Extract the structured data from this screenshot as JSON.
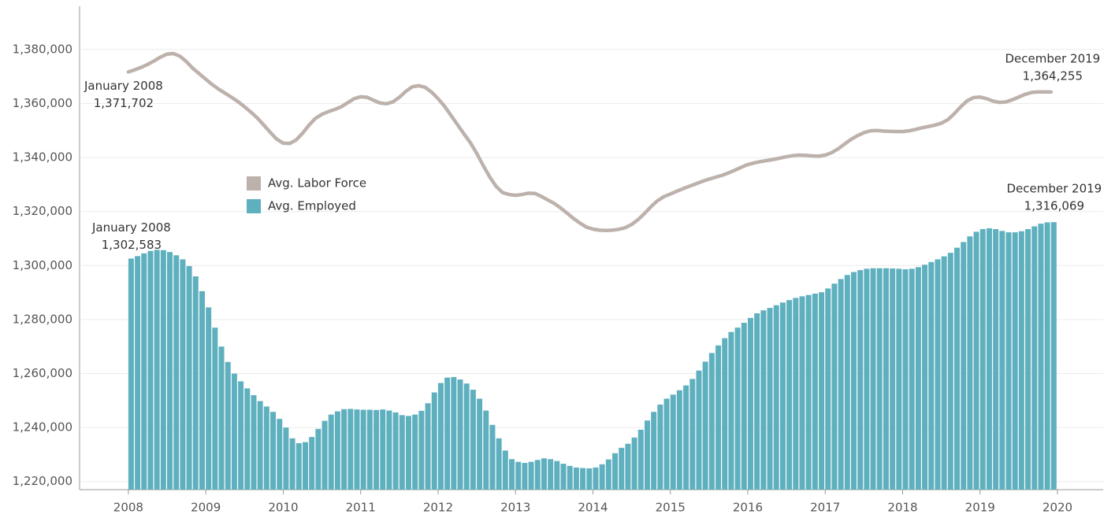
{
  "chart_data": {
    "type": "combo",
    "x": [
      2008,
      2008.0833,
      2008.1667,
      2008.25,
      2008.3333,
      2008.4167,
      2008.5,
      2008.5833,
      2008.6667,
      2008.75,
      2008.8333,
      2008.9167,
      2009,
      2009.0833,
      2009.1667,
      2009.25,
      2009.3333,
      2009.4167,
      2009.5,
      2009.5833,
      2009.6667,
      2009.75,
      2009.8333,
      2009.9167,
      2010,
      2010.0833,
      2010.1667,
      2010.25,
      2010.3333,
      2010.4167,
      2010.5,
      2010.5833,
      2010.6667,
      2010.75,
      2010.8333,
      2010.9167,
      2011,
      2011.0833,
      2011.1667,
      2011.25,
      2011.3333,
      2011.4167,
      2011.5,
      2011.5833,
      2011.6667,
      2011.75,
      2011.8333,
      2011.9167,
      2012,
      2012.0833,
      2012.1667,
      2012.25,
      2012.3333,
      2012.4167,
      2012.5,
      2012.5833,
      2012.6667,
      2012.75,
      2012.8333,
      2012.9167,
      2013,
      2013.0833,
      2013.1667,
      2013.25,
      2013.3333,
      2013.4167,
      2013.5,
      2013.5833,
      2013.6667,
      2013.75,
      2013.8333,
      2013.9167,
      2014,
      2014.0833,
      2014.1667,
      2014.25,
      2014.3333,
      2014.4167,
      2014.5,
      2014.5833,
      2014.6667,
      2014.75,
      2014.8333,
      2014.9167,
      2015,
      2015.0833,
      2015.1667,
      2015.25,
      2015.3333,
      2015.4167,
      2015.5,
      2015.5833,
      2015.6667,
      2015.75,
      2015.8333,
      2015.9167,
      2016,
      2016.0833,
      2016.1667,
      2016.25,
      2016.3333,
      2016.4167,
      2016.5,
      2016.5833,
      2016.6667,
      2016.75,
      2016.8333,
      2016.9167,
      2017,
      2017.0833,
      2017.1667,
      2017.25,
      2017.3333,
      2017.4167,
      2017.5,
      2017.5833,
      2017.6667,
      2017.75,
      2017.8333,
      2017.9167,
      2018,
      2018.0833,
      2018.1667,
      2018.25,
      2018.3333,
      2018.4167,
      2018.5,
      2018.5833,
      2018.6667,
      2018.75,
      2018.8333,
      2018.9167,
      2019,
      2019.0833,
      2019.1667,
      2019.25,
      2019.3333,
      2019.4167,
      2019.5,
      2019.5833,
      2019.6667,
      2019.75,
      2019.8333,
      2019.9167
    ],
    "series": [
      {
        "name": "Avg. Labor Force",
        "type": "line",
        "color": "#bdb1ac",
        "values": [
          1371702,
          1372500,
          1373400,
          1374500,
          1375800,
          1377200,
          1378300,
          1378500,
          1377500,
          1375500,
          1373000,
          1371000,
          1369000,
          1367000,
          1365300,
          1363800,
          1362300,
          1360700,
          1358800,
          1356800,
          1354600,
          1352000,
          1349300,
          1346800,
          1345300,
          1345200,
          1346500,
          1349000,
          1352000,
          1354500,
          1356000,
          1357000,
          1357800,
          1358800,
          1360300,
          1361800,
          1362500,
          1362300,
          1361200,
          1360200,
          1359900,
          1360600,
          1362300,
          1364500,
          1366200,
          1366600,
          1366000,
          1364200,
          1361800,
          1359000,
          1355600,
          1352200,
          1348800,
          1345500,
          1341500,
          1337000,
          1332800,
          1329300,
          1327000,
          1326300,
          1326000,
          1326300,
          1326800,
          1326700,
          1325600,
          1324300,
          1323000,
          1321300,
          1319400,
          1317400,
          1315700,
          1314200,
          1313500,
          1313100,
          1313000,
          1313100,
          1313400,
          1314000,
          1315200,
          1317000,
          1319300,
          1321800,
          1324000,
          1325500,
          1326500,
          1327500,
          1328500,
          1329400,
          1330300,
          1331200,
          1332000,
          1332700,
          1333400,
          1334300,
          1335300,
          1336400,
          1337400,
          1338000,
          1338500,
          1338900,
          1339300,
          1339800,
          1340300,
          1340700,
          1340900,
          1340800,
          1340600,
          1340500,
          1340900,
          1341800,
          1343200,
          1345000,
          1346700,
          1348100,
          1349200,
          1349900,
          1350000,
          1349800,
          1349700,
          1349600,
          1349600,
          1349900,
          1350400,
          1351000,
          1351500,
          1352000,
          1352700,
          1354000,
          1356200,
          1358800,
          1361000,
          1362200,
          1362400,
          1361800,
          1360900,
          1360400,
          1360600,
          1361400,
          1362400,
          1363400,
          1364100,
          1364300,
          1364300,
          1364255
        ],
        "annotations": {
          "first": {
            "label": "January 2008",
            "value_label": "1,371,702"
          },
          "last": {
            "label": "December 2019",
            "value_label": "1,364,255"
          }
        }
      },
      {
        "name": "Avg. Employed",
        "type": "bar",
        "color": "#5fb0bf",
        "values": [
          1302583,
          1303500,
          1304500,
          1305400,
          1305800,
          1305700,
          1305000,
          1303800,
          1302300,
          1299800,
          1296000,
          1290500,
          1284500,
          1277000,
          1270000,
          1264300,
          1260000,
          1257100,
          1254500,
          1252000,
          1249800,
          1247800,
          1245800,
          1243200,
          1240000,
          1236000,
          1234200,
          1234600,
          1236500,
          1239500,
          1242500,
          1244800,
          1246000,
          1246800,
          1246900,
          1246700,
          1246600,
          1246600,
          1246500,
          1246700,
          1246300,
          1245600,
          1244600,
          1244300,
          1244800,
          1246200,
          1249000,
          1253000,
          1256500,
          1258500,
          1258700,
          1257800,
          1256300,
          1254000,
          1250700,
          1246300,
          1241000,
          1236000,
          1231500,
          1228300,
          1227300,
          1226900,
          1227300,
          1228000,
          1228600,
          1228300,
          1227600,
          1226600,
          1225800,
          1225200,
          1225000,
          1224900,
          1225200,
          1226400,
          1228200,
          1230500,
          1232500,
          1234000,
          1236300,
          1239200,
          1242600,
          1245800,
          1248500,
          1250700,
          1252200,
          1253800,
          1255600,
          1258000,
          1261100,
          1264400,
          1267600,
          1270400,
          1273100,
          1275400,
          1277000,
          1278800,
          1280600,
          1282300,
          1283400,
          1284300,
          1285300,
          1286300,
          1287200,
          1288000,
          1288600,
          1289100,
          1289600,
          1290100,
          1291500,
          1293300,
          1295000,
          1296500,
          1297600,
          1298300,
          1298800,
          1299000,
          1299000,
          1299000,
          1298900,
          1298800,
          1298600,
          1298800,
          1299400,
          1300300,
          1301300,
          1302300,
          1303400,
          1304700,
          1306600,
          1308700,
          1310800,
          1312500,
          1313500,
          1313800,
          1313500,
          1312800,
          1312300,
          1312300,
          1312700,
          1313500,
          1314500,
          1315500,
          1316000,
          1316069
        ],
        "annotations": {
          "first": {
            "label": "January 2008",
            "value_label": "1,302,583"
          },
          "last": {
            "label": "December 2019",
            "value_label": "1,316,069"
          }
        }
      }
    ],
    "xlim": [
      2007.37,
      2020.59
    ],
    "xticks": [
      2008,
      2009,
      2010,
      2011,
      2012,
      2013,
      2014,
      2015,
      2016,
      2017,
      2018,
      2019,
      2020
    ],
    "ylim": [
      1217000,
      1396000
    ],
    "yticks": [
      {
        "value": 1220000,
        "label": "1,220,000"
      },
      {
        "value": 1240000,
        "label": "1,240,000"
      },
      {
        "value": 1260000,
        "label": "1,260,000"
      },
      {
        "value": 1280000,
        "label": "1,280,000"
      },
      {
        "value": 1300000,
        "label": "1,300,000"
      },
      {
        "value": 1320000,
        "label": "1,320,000"
      },
      {
        "value": 1340000,
        "label": "1,340,000"
      },
      {
        "value": 1360000,
        "label": "1,360,000"
      },
      {
        "value": 1380000,
        "label": "1,380,000"
      }
    ],
    "grid": true
  }
}
